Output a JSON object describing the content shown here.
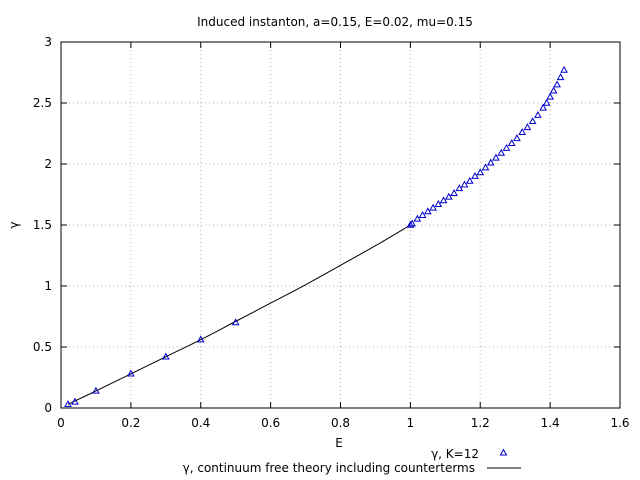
{
  "chart_data": {
    "type": "line",
    "title": "Induced instanton, a=0.15, E=0.02, mu=0.15",
    "xlabel": "E",
    "ylabel": "γ",
    "xlim": [
      0,
      1.6
    ],
    "ylim": [
      0,
      3
    ],
    "xticks": [
      0,
      0.2,
      0.4,
      0.6,
      0.8,
      1,
      1.2,
      1.4,
      1.6
    ],
    "yticks": [
      0,
      0.5,
      1,
      1.5,
      2,
      2.5,
      3
    ],
    "xtick_labels": [
      "0",
      "0.2",
      "0.4",
      "0.6",
      "0.8",
      "1",
      "1.2",
      "1.4",
      "1.6"
    ],
    "ytick_labels": [
      "0",
      "0.5",
      "1",
      "1.5",
      "2",
      "2.5",
      "3"
    ],
    "grid": true,
    "legend_position": "bottom",
    "series": [
      {
        "name": "γ, K=12",
        "style": "points",
        "marker": "triangle-up",
        "color": "#0000cc",
        "x": [
          0.02,
          0.04,
          0.1,
          0.2,
          0.3,
          0.4,
          0.5,
          1.0,
          1.005,
          1.02,
          1.035,
          1.05,
          1.065,
          1.08,
          1.095,
          1.11,
          1.125,
          1.14,
          1.155,
          1.17,
          1.185,
          1.2,
          1.215,
          1.23,
          1.245,
          1.26,
          1.275,
          1.29,
          1.305,
          1.32,
          1.335,
          1.35,
          1.365,
          1.38,
          1.39,
          1.4,
          1.41,
          1.42,
          1.43,
          1.44
        ],
        "y": [
          0.03,
          0.05,
          0.14,
          0.28,
          0.42,
          0.56,
          0.7,
          1.5,
          1.51,
          1.55,
          1.58,
          1.61,
          1.64,
          1.67,
          1.7,
          1.73,
          1.76,
          1.8,
          1.83,
          1.86,
          1.9,
          1.93,
          1.97,
          2.01,
          2.05,
          2.09,
          2.13,
          2.17,
          2.21,
          2.26,
          2.3,
          2.35,
          2.4,
          2.46,
          2.5,
          2.55,
          2.6,
          2.65,
          2.71,
          2.77
        ]
      },
      {
        "name": "γ, continuum free theory including counterterms",
        "style": "line",
        "color": "#000000",
        "x": [
          0.02,
          0.1,
          0.2,
          0.3,
          0.4,
          0.5,
          0.6,
          0.7,
          0.8,
          0.9,
          1.0
        ],
        "y": [
          0.03,
          0.14,
          0.28,
          0.42,
          0.56,
          0.71,
          0.86,
          1.01,
          1.17,
          1.33,
          1.5
        ]
      }
    ]
  }
}
